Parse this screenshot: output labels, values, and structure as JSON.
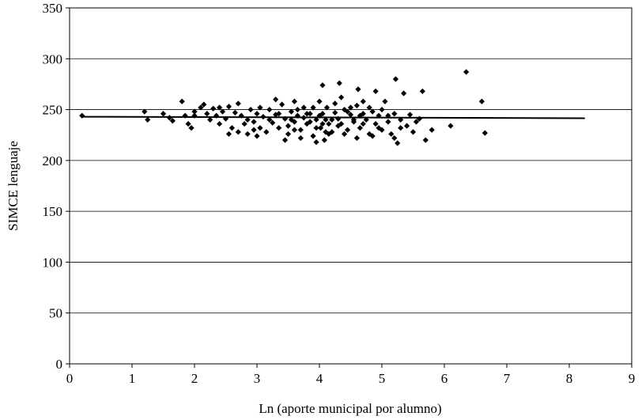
{
  "chart_data": {
    "type": "scatter",
    "xlabel": "Ln (aporte municipal por alumno)",
    "ylabel": "SIMCE lenguaje",
    "xlim": [
      0,
      9
    ],
    "ylim": [
      0,
      350
    ],
    "x_ticks": [
      "0",
      "1",
      "2",
      "3",
      "4",
      "5",
      "6",
      "7",
      "8",
      "9"
    ],
    "y_ticks": [
      "0",
      "50",
      "100",
      "150",
      "200",
      "250",
      "300",
      "350"
    ],
    "grid": "horizontal",
    "legend": "none",
    "marker": "diamond",
    "marker_color": "#000000",
    "series": [
      {
        "points": [
          [
            0.2,
            244
          ],
          [
            1.2,
            248
          ],
          [
            1.25,
            240
          ],
          [
            1.5,
            246
          ],
          [
            1.6,
            242
          ],
          [
            1.65,
            239
          ],
          [
            1.8,
            258
          ],
          [
            1.85,
            244
          ],
          [
            1.9,
            236
          ],
          [
            1.95,
            232
          ],
          [
            2.0,
            248
          ],
          [
            2.1,
            252
          ],
          [
            2.15,
            255
          ],
          [
            2.2,
            246
          ],
          [
            2.25,
            240
          ],
          [
            2.3,
            251
          ],
          [
            2.35,
            244
          ],
          [
            2.4,
            236
          ],
          [
            2.45,
            248
          ],
          [
            2.5,
            241
          ],
          [
            2.55,
            253
          ],
          [
            2.6,
            232
          ],
          [
            2.65,
            247
          ],
          [
            2.7,
            228
          ],
          [
            2.75,
            244
          ],
          [
            2.8,
            236
          ],
          [
            2.85,
            240
          ],
          [
            2.9,
            250
          ],
          [
            2.95,
            238
          ],
          [
            3.0,
            246
          ],
          [
            3.05,
            232
          ],
          [
            3.1,
            243
          ],
          [
            3.15,
            228
          ],
          [
            3.2,
            250
          ],
          [
            3.25,
            237
          ],
          [
            3.3,
            245
          ],
          [
            3.35,
            232
          ],
          [
            3.4,
            255
          ],
          [
            3.45,
            241
          ],
          [
            3.5,
            226
          ],
          [
            3.55,
            248
          ],
          [
            3.6,
            238
          ],
          [
            3.65,
            244
          ],
          [
            3.7,
            230
          ],
          [
            3.75,
            252
          ],
          [
            3.8,
            236
          ],
          [
            3.85,
            246
          ],
          [
            3.9,
            224
          ],
          [
            3.95,
            240
          ],
          [
            4.0,
            258
          ],
          [
            4.02,
            232
          ],
          [
            4.05,
            246
          ],
          [
            4.08,
            220
          ],
          [
            4.1,
            240
          ],
          [
            4.12,
            252
          ],
          [
            4.15,
            236
          ],
          [
            4.2,
            228
          ],
          [
            4.25,
            247
          ],
          [
            4.3,
            241
          ],
          [
            4.32,
            276
          ],
          [
            4.35,
            236
          ],
          [
            4.4,
            250
          ],
          [
            4.45,
            230
          ],
          [
            4.5,
            245
          ],
          [
            4.55,
            238
          ],
          [
            4.6,
            254
          ],
          [
            4.62,
            270
          ],
          [
            4.65,
            232
          ],
          [
            4.7,
            246
          ],
          [
            4.75,
            240
          ],
          [
            4.8,
            226
          ],
          [
            4.85,
            248
          ],
          [
            4.9,
            236
          ],
          [
            4.95,
            244
          ],
          [
            5.0,
            230
          ],
          [
            5.05,
            258
          ],
          [
            5.1,
            238
          ],
          [
            5.15,
            226
          ],
          [
            5.2,
            246
          ],
          [
            5.22,
            280
          ],
          [
            5.25,
            217
          ],
          [
            5.3,
            240
          ],
          [
            5.35,
            266
          ],
          [
            5.4,
            234
          ],
          [
            5.45,
            245
          ],
          [
            5.5,
            228
          ],
          [
            5.55,
            238
          ],
          [
            5.6,
            241
          ],
          [
            5.65,
            268
          ],
          [
            5.7,
            220
          ],
          [
            5.8,
            230
          ],
          [
            6.1,
            234
          ],
          [
            6.35,
            287
          ],
          [
            6.6,
            258
          ],
          [
            6.65,
            227
          ],
          [
            2.7,
            256
          ],
          [
            2.95,
            230
          ],
          [
            3.3,
            260
          ],
          [
            3.6,
            258
          ],
          [
            3.9,
            252
          ],
          [
            4.05,
            274
          ],
          [
            4.5,
            252
          ],
          [
            4.7,
            258
          ],
          [
            4.9,
            268
          ],
          [
            5.0,
            250
          ],
          [
            5.2,
            222
          ],
          [
            3.45,
            220
          ],
          [
            3.7,
            222
          ],
          [
            3.95,
            218
          ],
          [
            4.15,
            226
          ],
          [
            4.4,
            226
          ],
          [
            4.6,
            222
          ],
          [
            4.85,
            224
          ],
          [
            3.0,
            224
          ],
          [
            2.55,
            226
          ],
          [
            2.85,
            226
          ],
          [
            4.0,
            244
          ],
          [
            3.85,
            238
          ],
          [
            4.3,
            234
          ],
          [
            4.55,
            240
          ],
          [
            4.25,
            256
          ],
          [
            3.75,
            242
          ],
          [
            3.5,
            234
          ],
          [
            3.2,
            240
          ],
          [
            4.45,
            248
          ],
          [
            4.7,
            236
          ],
          [
            3.65,
            250
          ],
          [
            3.35,
            246
          ],
          [
            2.4,
            252
          ],
          [
            2.0,
            244
          ],
          [
            4.8,
            252
          ],
          [
            5.1,
            244
          ],
          [
            5.3,
            232
          ],
          [
            4.1,
            228
          ],
          [
            3.55,
            240
          ],
          [
            3.05,
            252
          ],
          [
            4.35,
            262
          ],
          [
            4.95,
            232
          ],
          [
            4.65,
            244
          ],
          [
            3.95,
            232
          ],
          [
            3.8,
            246
          ],
          [
            4.2,
            240
          ],
          [
            4.05,
            236
          ],
          [
            3.6,
            230
          ]
        ]
      }
    ],
    "trendline": {
      "x": [
        0.2,
        8.25
      ],
      "y": [
        243,
        241.5
      ]
    }
  }
}
